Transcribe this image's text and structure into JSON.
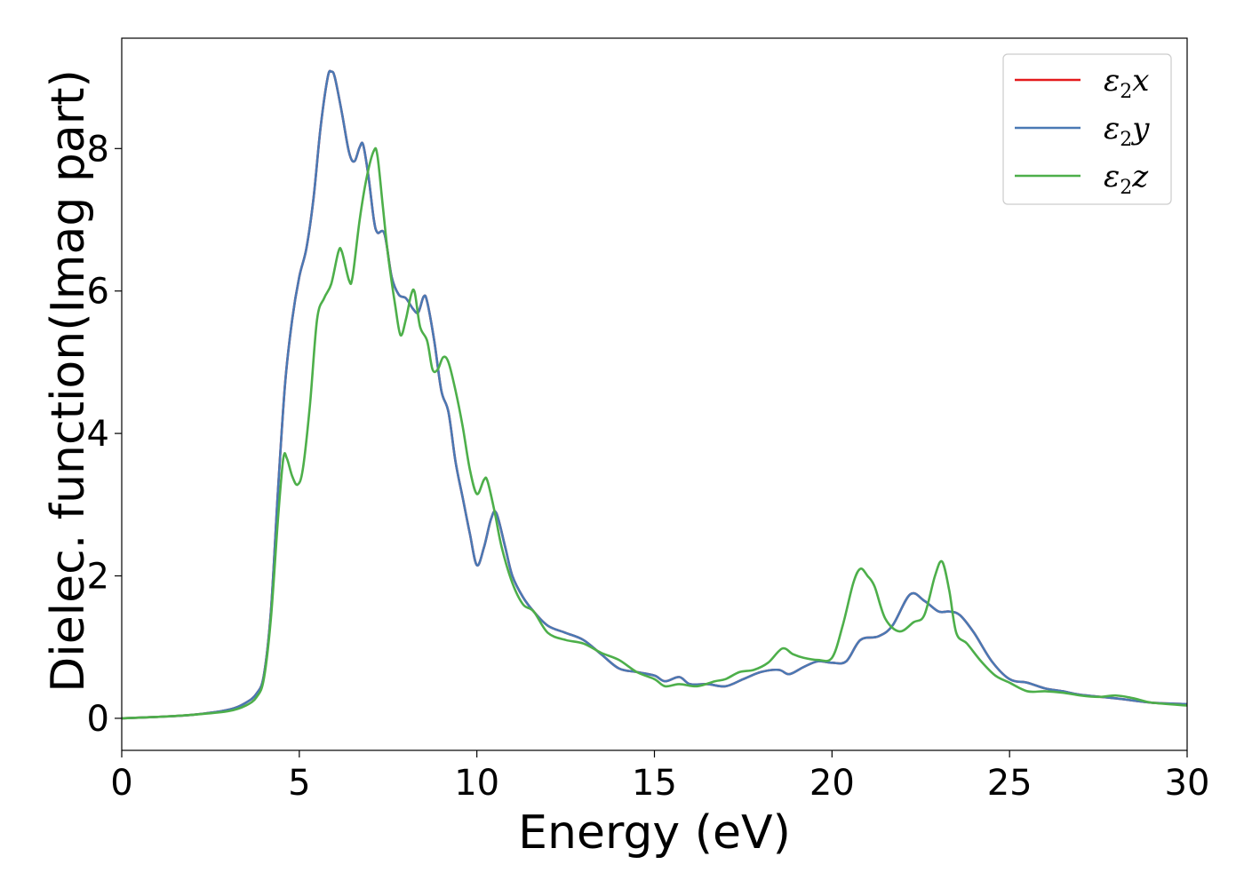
{
  "chart_data": {
    "type": "line",
    "xlabel": "Energy (eV)",
    "ylabel": "Dielec. function(Imag part)",
    "xlim": [
      0,
      30
    ],
    "ylim": [
      -0.45,
      9.55
    ],
    "xticks": [
      0,
      5,
      10,
      15,
      20,
      25,
      30
    ],
    "yticks": [
      0,
      2,
      4,
      6,
      8
    ],
    "grid": false,
    "legend_position": "top-right",
    "series": [
      {
        "name": "ε2x",
        "color": "#e41a1c",
        "points": [
          [
            0,
            0
          ],
          [
            1,
            0.02
          ],
          [
            2,
            0.05
          ],
          [
            3,
            0.12
          ],
          [
            3.5,
            0.22
          ],
          [
            3.8,
            0.35
          ],
          [
            4.0,
            0.6
          ],
          [
            4.2,
            1.5
          ],
          [
            4.4,
            3.2
          ],
          [
            4.6,
            4.7
          ],
          [
            4.8,
            5.6
          ],
          [
            5.0,
            6.2
          ],
          [
            5.2,
            6.6
          ],
          [
            5.4,
            7.3
          ],
          [
            5.6,
            8.3
          ],
          [
            5.8,
            9.0
          ],
          [
            5.9,
            9.08
          ],
          [
            6.0,
            9.0
          ],
          [
            6.2,
            8.5
          ],
          [
            6.4,
            7.95
          ],
          [
            6.55,
            7.82
          ],
          [
            6.7,
            8.02
          ],
          [
            6.8,
            8.05
          ],
          [
            6.95,
            7.6
          ],
          [
            7.1,
            7.0
          ],
          [
            7.2,
            6.82
          ],
          [
            7.4,
            6.8
          ],
          [
            7.6,
            6.2
          ],
          [
            7.8,
            5.95
          ],
          [
            8.0,
            5.9
          ],
          [
            8.2,
            5.75
          ],
          [
            8.35,
            5.7
          ],
          [
            8.5,
            5.92
          ],
          [
            8.6,
            5.85
          ],
          [
            8.8,
            5.3
          ],
          [
            9.0,
            4.6
          ],
          [
            9.2,
            4.3
          ],
          [
            9.4,
            3.6
          ],
          [
            9.6,
            3.1
          ],
          [
            9.8,
            2.6
          ],
          [
            10.0,
            2.15
          ],
          [
            10.2,
            2.4
          ],
          [
            10.4,
            2.8
          ],
          [
            10.55,
            2.88
          ],
          [
            10.8,
            2.4
          ],
          [
            11.0,
            2.0
          ],
          [
            11.3,
            1.7
          ],
          [
            11.6,
            1.5
          ],
          [
            12.0,
            1.3
          ],
          [
            12.5,
            1.2
          ],
          [
            13.0,
            1.1
          ],
          [
            13.5,
            0.9
          ],
          [
            14.0,
            0.7
          ],
          [
            14.5,
            0.65
          ],
          [
            15.0,
            0.6
          ],
          [
            15.3,
            0.52
          ],
          [
            15.7,
            0.58
          ],
          [
            16.0,
            0.48
          ],
          [
            16.5,
            0.48
          ],
          [
            17.0,
            0.45
          ],
          [
            17.5,
            0.55
          ],
          [
            18.0,
            0.65
          ],
          [
            18.5,
            0.68
          ],
          [
            18.8,
            0.62
          ],
          [
            19.2,
            0.72
          ],
          [
            19.6,
            0.8
          ],
          [
            20.0,
            0.78
          ],
          [
            20.4,
            0.8
          ],
          [
            20.8,
            1.1
          ],
          [
            21.3,
            1.15
          ],
          [
            21.7,
            1.3
          ],
          [
            22.2,
            1.74
          ],
          [
            22.6,
            1.65
          ],
          [
            23.0,
            1.5
          ],
          [
            23.3,
            1.5
          ],
          [
            23.6,
            1.45
          ],
          [
            24.0,
            1.2
          ],
          [
            24.5,
            0.8
          ],
          [
            25.0,
            0.55
          ],
          [
            25.5,
            0.5
          ],
          [
            26.0,
            0.42
          ],
          [
            26.5,
            0.38
          ],
          [
            27.0,
            0.33
          ],
          [
            28.0,
            0.28
          ],
          [
            29.0,
            0.22
          ],
          [
            30.0,
            0.2
          ]
        ]
      },
      {
        "name": "ε2y",
        "color": "#4a79b4",
        "points": [
          [
            0,
            0
          ],
          [
            1,
            0.02
          ],
          [
            2,
            0.05
          ],
          [
            3,
            0.12
          ],
          [
            3.5,
            0.22
          ],
          [
            3.8,
            0.35
          ],
          [
            4.0,
            0.6
          ],
          [
            4.2,
            1.5
          ],
          [
            4.4,
            3.2
          ],
          [
            4.6,
            4.7
          ],
          [
            4.8,
            5.6
          ],
          [
            5.0,
            6.2
          ],
          [
            5.2,
            6.6
          ],
          [
            5.4,
            7.3
          ],
          [
            5.6,
            8.3
          ],
          [
            5.8,
            9.0
          ],
          [
            5.9,
            9.08
          ],
          [
            6.0,
            9.0
          ],
          [
            6.2,
            8.5
          ],
          [
            6.4,
            7.95
          ],
          [
            6.55,
            7.82
          ],
          [
            6.7,
            8.02
          ],
          [
            6.8,
            8.05
          ],
          [
            6.95,
            7.6
          ],
          [
            7.1,
            7.0
          ],
          [
            7.2,
            6.82
          ],
          [
            7.4,
            6.8
          ],
          [
            7.6,
            6.2
          ],
          [
            7.8,
            5.95
          ],
          [
            8.0,
            5.9
          ],
          [
            8.2,
            5.75
          ],
          [
            8.35,
            5.7
          ],
          [
            8.5,
            5.92
          ],
          [
            8.6,
            5.85
          ],
          [
            8.8,
            5.3
          ],
          [
            9.0,
            4.6
          ],
          [
            9.2,
            4.3
          ],
          [
            9.4,
            3.6
          ],
          [
            9.6,
            3.1
          ],
          [
            9.8,
            2.6
          ],
          [
            10.0,
            2.15
          ],
          [
            10.2,
            2.4
          ],
          [
            10.4,
            2.8
          ],
          [
            10.55,
            2.88
          ],
          [
            10.8,
            2.4
          ],
          [
            11.0,
            2.0
          ],
          [
            11.3,
            1.7
          ],
          [
            11.6,
            1.5
          ],
          [
            12.0,
            1.3
          ],
          [
            12.5,
            1.2
          ],
          [
            13.0,
            1.1
          ],
          [
            13.5,
            0.9
          ],
          [
            14.0,
            0.7
          ],
          [
            14.5,
            0.65
          ],
          [
            15.0,
            0.6
          ],
          [
            15.3,
            0.52
          ],
          [
            15.7,
            0.58
          ],
          [
            16.0,
            0.48
          ],
          [
            16.5,
            0.48
          ],
          [
            17.0,
            0.45
          ],
          [
            17.5,
            0.55
          ],
          [
            18.0,
            0.65
          ],
          [
            18.5,
            0.68
          ],
          [
            18.8,
            0.62
          ],
          [
            19.2,
            0.72
          ],
          [
            19.6,
            0.8
          ],
          [
            20.0,
            0.78
          ],
          [
            20.4,
            0.8
          ],
          [
            20.8,
            1.1
          ],
          [
            21.3,
            1.15
          ],
          [
            21.7,
            1.3
          ],
          [
            22.2,
            1.74
          ],
          [
            22.6,
            1.65
          ],
          [
            23.0,
            1.5
          ],
          [
            23.3,
            1.5
          ],
          [
            23.6,
            1.45
          ],
          [
            24.0,
            1.2
          ],
          [
            24.5,
            0.8
          ],
          [
            25.0,
            0.55
          ],
          [
            25.5,
            0.5
          ],
          [
            26.0,
            0.42
          ],
          [
            26.5,
            0.38
          ],
          [
            27.0,
            0.33
          ],
          [
            28.0,
            0.28
          ],
          [
            29.0,
            0.22
          ],
          [
            30.0,
            0.2
          ]
        ]
      },
      {
        "name": "ε2z",
        "color": "#4daf4a",
        "points": [
          [
            0,
            0
          ],
          [
            1,
            0.02
          ],
          [
            2,
            0.05
          ],
          [
            3,
            0.1
          ],
          [
            3.5,
            0.18
          ],
          [
            3.8,
            0.3
          ],
          [
            4.0,
            0.55
          ],
          [
            4.2,
            1.4
          ],
          [
            4.4,
            2.8
          ],
          [
            4.55,
            3.65
          ],
          [
            4.65,
            3.65
          ],
          [
            4.8,
            3.4
          ],
          [
            4.95,
            3.28
          ],
          [
            5.1,
            3.5
          ],
          [
            5.3,
            4.4
          ],
          [
            5.5,
            5.6
          ],
          [
            5.7,
            5.9
          ],
          [
            5.9,
            6.1
          ],
          [
            6.1,
            6.55
          ],
          [
            6.2,
            6.55
          ],
          [
            6.4,
            6.15
          ],
          [
            6.5,
            6.2
          ],
          [
            6.7,
            7.0
          ],
          [
            6.9,
            7.6
          ],
          [
            7.1,
            7.97
          ],
          [
            7.2,
            7.9
          ],
          [
            7.35,
            7.2
          ],
          [
            7.5,
            6.5
          ],
          [
            7.7,
            5.8
          ],
          [
            7.85,
            5.38
          ],
          [
            8.0,
            5.6
          ],
          [
            8.15,
            5.95
          ],
          [
            8.25,
            5.98
          ],
          [
            8.4,
            5.5
          ],
          [
            8.6,
            5.3
          ],
          [
            8.75,
            4.9
          ],
          [
            8.9,
            4.9
          ],
          [
            9.05,
            5.07
          ],
          [
            9.2,
            5.0
          ],
          [
            9.4,
            4.6
          ],
          [
            9.6,
            4.1
          ],
          [
            9.8,
            3.5
          ],
          [
            10.0,
            3.15
          ],
          [
            10.2,
            3.35
          ],
          [
            10.3,
            3.33
          ],
          [
            10.5,
            2.9
          ],
          [
            10.7,
            2.4
          ],
          [
            11.0,
            1.9
          ],
          [
            11.3,
            1.6
          ],
          [
            11.6,
            1.5
          ],
          [
            12.0,
            1.2
          ],
          [
            12.5,
            1.1
          ],
          [
            13.0,
            1.05
          ],
          [
            13.5,
            0.92
          ],
          [
            14.0,
            0.82
          ],
          [
            14.5,
            0.65
          ],
          [
            15.0,
            0.55
          ],
          [
            15.3,
            0.45
          ],
          [
            15.7,
            0.48
          ],
          [
            16.2,
            0.45
          ],
          [
            16.7,
            0.52
          ],
          [
            17.0,
            0.55
          ],
          [
            17.4,
            0.65
          ],
          [
            17.8,
            0.68
          ],
          [
            18.2,
            0.78
          ],
          [
            18.6,
            0.98
          ],
          [
            18.9,
            0.9
          ],
          [
            19.2,
            0.85
          ],
          [
            19.6,
            0.82
          ],
          [
            20.0,
            0.85
          ],
          [
            20.3,
            1.3
          ],
          [
            20.6,
            1.9
          ],
          [
            20.8,
            2.1
          ],
          [
            21.0,
            2.0
          ],
          [
            21.2,
            1.85
          ],
          [
            21.5,
            1.4
          ],
          [
            21.9,
            1.22
          ],
          [
            22.3,
            1.35
          ],
          [
            22.6,
            1.45
          ],
          [
            22.9,
            2.0
          ],
          [
            23.1,
            2.2
          ],
          [
            23.3,
            1.8
          ],
          [
            23.5,
            1.2
          ],
          [
            23.8,
            1.05
          ],
          [
            24.2,
            0.8
          ],
          [
            24.6,
            0.6
          ],
          [
            25.0,
            0.5
          ],
          [
            25.5,
            0.38
          ],
          [
            26.0,
            0.38
          ],
          [
            26.5,
            0.36
          ],
          [
            27.0,
            0.32
          ],
          [
            27.5,
            0.3
          ],
          [
            28.0,
            0.32
          ],
          [
            28.5,
            0.28
          ],
          [
            29.0,
            0.22
          ],
          [
            30.0,
            0.18
          ]
        ]
      }
    ]
  }
}
